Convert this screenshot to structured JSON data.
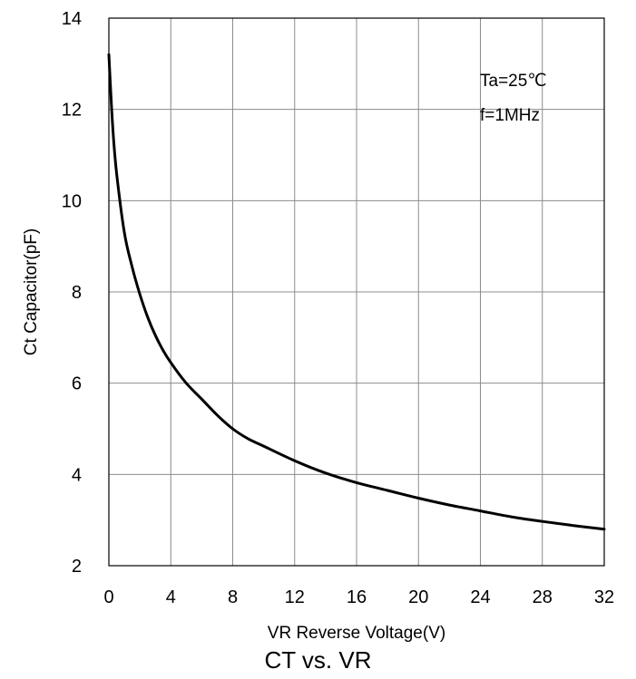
{
  "caption": "CT vs. VR",
  "chart_data": {
    "type": "line",
    "title": "CT vs. VR",
    "xlabel": "VR Reverse Voltage(V)",
    "ylabel": "Ct Capacitor(pF)",
    "xlim": [
      0,
      32
    ],
    "ylim": [
      2,
      14
    ],
    "xticks": [
      0,
      4,
      8,
      12,
      16,
      20,
      24,
      28,
      32
    ],
    "yticks": [
      2,
      4,
      6,
      8,
      10,
      12,
      14
    ],
    "grid": true,
    "annotations": [
      "Ta=25℃",
      "f=1MHz"
    ],
    "series": [
      {
        "color": "#000000",
        "x": [
          0,
          0.25,
          0.5,
          1,
          1.5,
          2,
          2.5,
          3,
          3.5,
          4,
          5,
          6,
          7,
          8,
          9,
          10,
          12,
          14,
          16,
          18,
          20,
          22,
          24,
          26,
          28,
          30,
          32
        ],
        "y": [
          13.2,
          11.6,
          10.6,
          9.3,
          8.55,
          7.95,
          7.45,
          7.05,
          6.72,
          6.45,
          6.0,
          5.65,
          5.3,
          5.0,
          4.78,
          4.62,
          4.3,
          4.03,
          3.82,
          3.65,
          3.48,
          3.33,
          3.2,
          3.07,
          2.97,
          2.88,
          2.8
        ]
      }
    ]
  }
}
